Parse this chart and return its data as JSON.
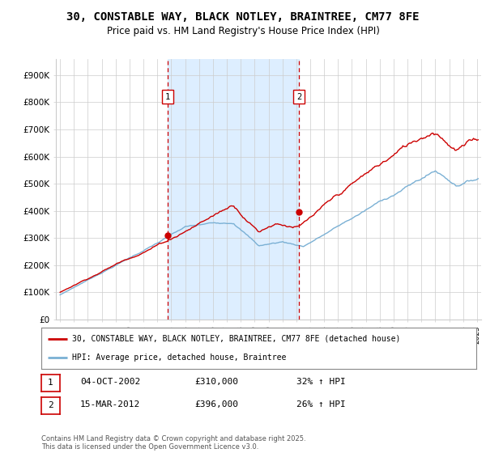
{
  "title": "30, CONSTABLE WAY, BLACK NOTLEY, BRAINTREE, CM77 8FE",
  "subtitle": "Price paid vs. HM Land Registry's House Price Index (HPI)",
  "title_fontsize": 10,
  "subtitle_fontsize": 8.5,
  "ylabel_ticks": [
    "£0",
    "£100K",
    "£200K",
    "£300K",
    "£400K",
    "£500K",
    "£600K",
    "£700K",
    "£800K",
    "£900K"
  ],
  "ytick_values": [
    0,
    100000,
    200000,
    300000,
    400000,
    500000,
    600000,
    700000,
    800000,
    900000
  ],
  "ylim": [
    0,
    960000
  ],
  "xlim_start": 1994.7,
  "xlim_end": 2025.3,
  "purchase1_x": 2002.75,
  "purchase1_y": 310000,
  "purchase2_x": 2012.2,
  "purchase2_y": 396000,
  "purchase_color": "#cc0000",
  "hpi_color": "#7ab0d4",
  "shade_color": "#ddeeff",
  "dot_color": "#cc0000",
  "legend_entry1": "30, CONSTABLE WAY, BLACK NOTLEY, BRAINTREE, CM77 8FE (detached house)",
  "legend_entry2": "HPI: Average price, detached house, Braintree",
  "annotation1_label": "1",
  "annotation1_date": "04-OCT-2002",
  "annotation1_price": "£310,000",
  "annotation1_hpi": "32% ↑ HPI",
  "annotation2_label": "2",
  "annotation2_date": "15-MAR-2012",
  "annotation2_price": "£396,000",
  "annotation2_hpi": "26% ↑ HPI",
  "footer": "Contains HM Land Registry data © Crown copyright and database right 2025.\nThis data is licensed under the Open Government Licence v3.0.",
  "background_color": "#ffffff",
  "grid_color": "#cccccc"
}
